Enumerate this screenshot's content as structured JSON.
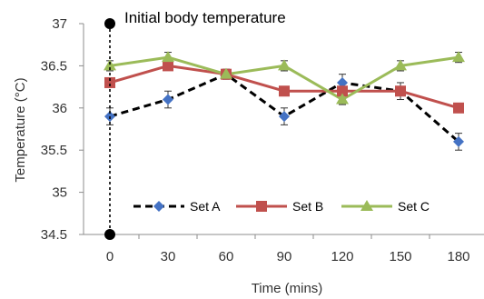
{
  "chart_data": {
    "type": "line",
    "x": [
      0,
      30,
      60,
      90,
      120,
      150,
      180
    ],
    "xlabel": "Time (mins)",
    "ylabel": "Temperature (°C)",
    "ylim": [
      34.5,
      37
    ],
    "yticks": [
      34.5,
      35,
      35.5,
      36,
      36.5,
      37
    ],
    "ytick_labels": [
      "34.5",
      "35",
      "35.5",
      "36",
      "36.5",
      "37"
    ],
    "xtick_labels": [
      "0",
      "30",
      "60",
      "90",
      "120",
      "150",
      "180"
    ],
    "grid": false,
    "legend_position": "bottom-center",
    "annotation": "Initial body temperature",
    "series": [
      {
        "name": "Set A",
        "values": [
          35.9,
          36.1,
          36.4,
          35.9,
          36.3,
          36.2,
          35.6
        ],
        "errors": [
          0.1,
          0.1,
          0.05,
          0.1,
          0.1,
          0.1,
          0.1
        ],
        "color": "#4472c4",
        "line_color": "#000000",
        "dash": "dashed",
        "marker": "diamond"
      },
      {
        "name": "Set B",
        "values": [
          36.3,
          36.5,
          36.4,
          36.2,
          36.2,
          36.2,
          36.0
        ],
        "errors": [
          0.05,
          0.05,
          0.05,
          0.05,
          0.05,
          0.05,
          0.05
        ],
        "color": "#c0504d",
        "line_color": "#c0504d",
        "dash": "solid",
        "marker": "square"
      },
      {
        "name": "Set C",
        "values": [
          36.5,
          36.6,
          36.4,
          36.5,
          36.1,
          36.5,
          36.6
        ],
        "errors": [
          0.06,
          0.06,
          0.06,
          0.06,
          0.06,
          0.06,
          0.06
        ],
        "color": "#9bbb59",
        "line_color": "#9bbb59",
        "dash": "solid",
        "marker": "triangle"
      }
    ]
  }
}
